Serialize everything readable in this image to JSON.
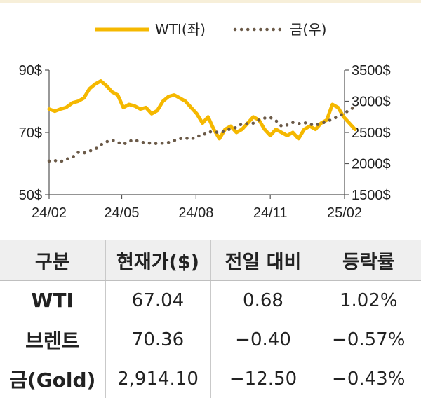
{
  "chart_data": {
    "type": "line",
    "x_ticks": [
      "24/02",
      "24/05",
      "24/08",
      "24/11",
      "25/02"
    ],
    "y_left": {
      "ticks": [
        "90$",
        "70$",
        "50$"
      ],
      "ylim": [
        50,
        90
      ]
    },
    "y_right": {
      "ticks": [
        "3500$",
        "3000$",
        "2500$",
        "2000$",
        "1500$"
      ],
      "ylim": [
        1500,
        3500
      ]
    },
    "legend": {
      "position": "top-center"
    },
    "grid": false,
    "series": [
      {
        "name": "WTI(좌)",
        "axis": "left",
        "color": "#F5B800",
        "style": "solid",
        "x": [
          "2024-02-01",
          "2024-02-08",
          "2024-02-15",
          "2024-02-22",
          "2024-03-01",
          "2024-03-08",
          "2024-03-15",
          "2024-03-22",
          "2024-03-29",
          "2024-04-05",
          "2024-04-12",
          "2024-04-19",
          "2024-04-26",
          "2024-05-03",
          "2024-05-10",
          "2024-05-17",
          "2024-05-24",
          "2024-05-31",
          "2024-06-07",
          "2024-06-14",
          "2024-06-21",
          "2024-06-28",
          "2024-07-05",
          "2024-07-12",
          "2024-07-19",
          "2024-07-26",
          "2024-08-02",
          "2024-08-09",
          "2024-08-16",
          "2024-08-23",
          "2024-08-30",
          "2024-09-06",
          "2024-09-13",
          "2024-09-20",
          "2024-09-27",
          "2024-10-04",
          "2024-10-11",
          "2024-10-18",
          "2024-10-25",
          "2024-11-01",
          "2024-11-08",
          "2024-11-15",
          "2024-11-22",
          "2024-11-29",
          "2024-12-06",
          "2024-12-13",
          "2024-12-20",
          "2024-12-27",
          "2025-01-03",
          "2025-01-10",
          "2025-01-17",
          "2025-01-24",
          "2025-01-31",
          "2025-02-07",
          "2025-02-14"
        ],
        "values": [
          77.5,
          76.8,
          77.5,
          78,
          79.5,
          80,
          81,
          84,
          85.5,
          86.5,
          85,
          83,
          82,
          78,
          79,
          78.5,
          77.5,
          78,
          76,
          77,
          80,
          81.5,
          82,
          81,
          80,
          78,
          76,
          73,
          75,
          71,
          68,
          71,
          72,
          70,
          71,
          73,
          75,
          74,
          71,
          69,
          71,
          70,
          69,
          70,
          68,
          71,
          72,
          71,
          73,
          74,
          79,
          78,
          75,
          73,
          71
        ]
      },
      {
        "name": "금(우)",
        "axis": "right",
        "color": "#6B5A48",
        "style": "dotted",
        "x": [
          "2024-02-01",
          "2024-02-08",
          "2024-02-15",
          "2024-02-22",
          "2024-03-01",
          "2024-03-08",
          "2024-03-15",
          "2024-03-22",
          "2024-03-29",
          "2024-04-05",
          "2024-04-12",
          "2024-04-19",
          "2024-04-26",
          "2024-05-03",
          "2024-05-10",
          "2024-05-17",
          "2024-05-24",
          "2024-05-31",
          "2024-06-07",
          "2024-06-14",
          "2024-06-21",
          "2024-06-28",
          "2024-07-05",
          "2024-07-12",
          "2024-07-19",
          "2024-07-26",
          "2024-08-02",
          "2024-08-09",
          "2024-08-16",
          "2024-08-23",
          "2024-08-30",
          "2024-09-06",
          "2024-09-13",
          "2024-09-20",
          "2024-09-27",
          "2024-10-04",
          "2024-10-11",
          "2024-10-18",
          "2024-10-25",
          "2024-11-01",
          "2024-11-08",
          "2024-11-15",
          "2024-11-22",
          "2024-11-29",
          "2024-12-06",
          "2024-12-13",
          "2024-12-20",
          "2024-12-27",
          "2025-01-03",
          "2025-01-10",
          "2025-01-17",
          "2025-01-24",
          "2025-01-31",
          "2025-02-07",
          "2025-02-14"
        ],
        "values": [
          2040,
          2050,
          2030,
          2070,
          2100,
          2180,
          2170,
          2200,
          2230,
          2300,
          2350,
          2380,
          2340,
          2310,
          2360,
          2380,
          2350,
          2330,
          2330,
          2320,
          2330,
          2340,
          2370,
          2400,
          2410,
          2390,
          2440,
          2450,
          2510,
          2510,
          2500,
          2520,
          2560,
          2580,
          2640,
          2640,
          2650,
          2700,
          2730,
          2740,
          2690,
          2600,
          2620,
          2660,
          2640,
          2660,
          2630,
          2620,
          2640,
          2680,
          2710,
          2760,
          2800,
          2860,
          2914
        ]
      }
    ]
  },
  "table": {
    "headers": [
      "구분",
      "현재가($)",
      "전일 대비",
      "등락률"
    ],
    "rows": [
      [
        "WTI",
        "67.04",
        "0.68",
        "1.02%"
      ],
      [
        "브렌트",
        "70.36",
        "−0.40",
        "−0.57%"
      ],
      [
        "금(Gold)",
        "2,914.10",
        "−12.50",
        "−0.43%"
      ]
    ]
  }
}
